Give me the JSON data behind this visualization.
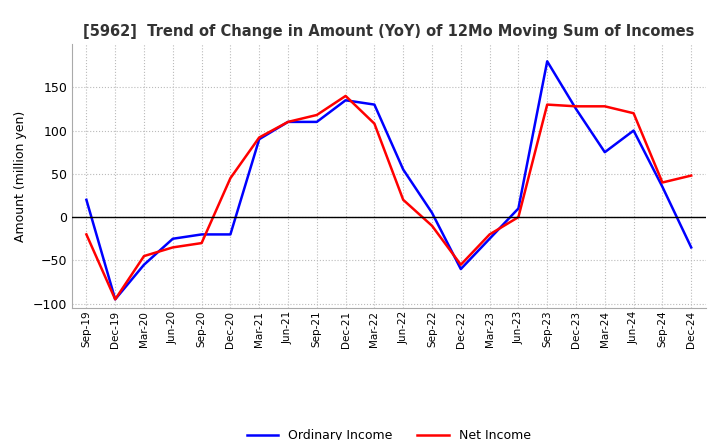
{
  "title": "[5962]  Trend of Change in Amount (YoY) of 12Mo Moving Sum of Incomes",
  "ylabel": "Amount (million yen)",
  "ylim": [
    -105,
    200
  ],
  "yticks": [
    -100,
    -50,
    0,
    50,
    100,
    150
  ],
  "background_color": "#ffffff",
  "grid_color": "#bbbbbb",
  "ordinary_income_color": "#0000ff",
  "net_income_color": "#ff0000",
  "x_labels": [
    "Sep-19",
    "Dec-19",
    "Mar-20",
    "Jun-20",
    "Sep-20",
    "Dec-20",
    "Mar-21",
    "Jun-21",
    "Sep-21",
    "Dec-21",
    "Mar-22",
    "Jun-22",
    "Sep-22",
    "Dec-22",
    "Mar-23",
    "Jun-23",
    "Sep-23",
    "Dec-23",
    "Mar-24",
    "Jun-24",
    "Sep-24",
    "Dec-24"
  ],
  "ordinary_income": [
    20,
    -95,
    -55,
    -25,
    -20,
    -20,
    90,
    110,
    110,
    135,
    130,
    55,
    5,
    -60,
    -25,
    10,
    180,
    125,
    75,
    100,
    35,
    -35
  ],
  "net_income": [
    -20,
    -95,
    -45,
    -35,
    -30,
    45,
    92,
    110,
    118,
    140,
    108,
    20,
    -10,
    -55,
    -20,
    0,
    130,
    128,
    128,
    120,
    40,
    48
  ]
}
